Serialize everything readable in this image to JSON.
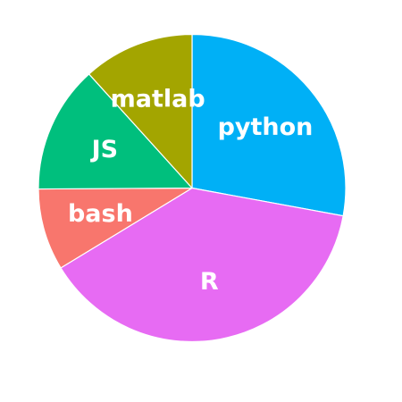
{
  "chart_data": {
    "type": "pie",
    "start_direction": "top",
    "direction": "clockwise",
    "slice_border_color": "#ffffff",
    "slices": [
      {
        "label": "python",
        "value": 27.9,
        "color": "#00B0F6"
      },
      {
        "label": "R",
        "value": 38.4,
        "color": "#E76BF3"
      },
      {
        "label": "bash",
        "value": 8.6,
        "color": "#F8766D"
      },
      {
        "label": "JS",
        "value": 13.4,
        "color": "#00BF7D"
      },
      {
        "label": "matlab",
        "value": 11.7,
        "color": "#A3A500"
      }
    ]
  }
}
